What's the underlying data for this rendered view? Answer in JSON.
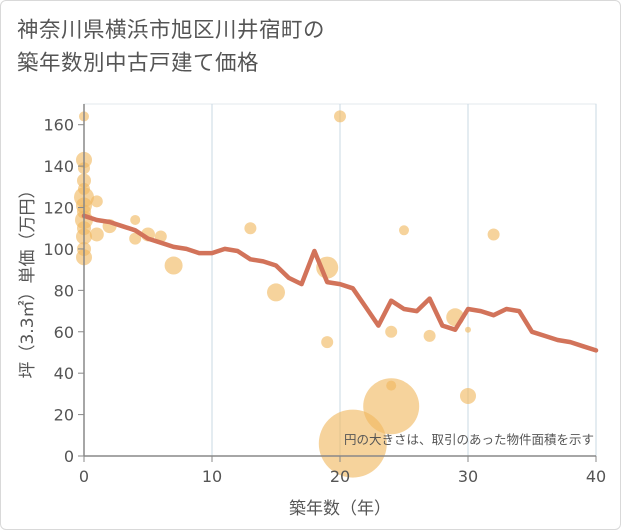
{
  "title_lines": [
    "神奈川県横浜市旭区川井宿町の",
    "築年数別中古戸建て価格"
  ],
  "chart_data": {
    "type": "scatter+line",
    "xlabel": "築年数（年）",
    "ylabel": "坪（3.3㎡）単価（万円）",
    "xlim": [
      0,
      40
    ],
    "ylim": [
      0,
      170
    ],
    "xticks": [
      0,
      10,
      20,
      30,
      40
    ],
    "yticks": [
      0,
      20,
      40,
      60,
      80,
      100,
      120,
      140,
      160
    ],
    "grid": "vertical",
    "note": "円の大きさは、取引のあった物件面積を示す",
    "colors": {
      "bubble": "#f0b860",
      "line": "#d2735a",
      "grid": "#c9d9e3",
      "axis": "#888888"
    },
    "bubbles": [
      {
        "x": 0,
        "y": 164,
        "size": 5
      },
      {
        "x": 0,
        "y": 143,
        "size": 8
      },
      {
        "x": 0,
        "y": 139,
        "size": 6
      },
      {
        "x": 0,
        "y": 133,
        "size": 7
      },
      {
        "x": 0,
        "y": 129,
        "size": 6
      },
      {
        "x": 0,
        "y": 125,
        "size": 10
      },
      {
        "x": 0,
        "y": 121,
        "size": 8
      },
      {
        "x": 0,
        "y": 118,
        "size": 7
      },
      {
        "x": 0,
        "y": 114,
        "size": 9
      },
      {
        "x": 0,
        "y": 110,
        "size": 7
      },
      {
        "x": 0,
        "y": 106,
        "size": 8
      },
      {
        "x": 0,
        "y": 100,
        "size": 7
      },
      {
        "x": 0,
        "y": 96,
        "size": 8
      },
      {
        "x": 1,
        "y": 123,
        "size": 6
      },
      {
        "x": 1,
        "y": 107,
        "size": 7
      },
      {
        "x": 2,
        "y": 111,
        "size": 7
      },
      {
        "x": 4,
        "y": 114,
        "size": 5
      },
      {
        "x": 4,
        "y": 105,
        "size": 6
      },
      {
        "x": 5,
        "y": 107,
        "size": 7
      },
      {
        "x": 6,
        "y": 106,
        "size": 6
      },
      {
        "x": 7,
        "y": 92,
        "size": 9
      },
      {
        "x": 13,
        "y": 110,
        "size": 6
      },
      {
        "x": 15,
        "y": 79,
        "size": 9
      },
      {
        "x": 19,
        "y": 91,
        "size": 11
      },
      {
        "x": 19,
        "y": 55,
        "size": 6
      },
      {
        "x": 20,
        "y": 164,
        "size": 6
      },
      {
        "x": 21,
        "y": 6,
        "size": 34
      },
      {
        "x": 24,
        "y": 24,
        "size": 28
      },
      {
        "x": 24,
        "y": 60,
        "size": 6
      },
      {
        "x": 24,
        "y": 34,
        "size": 5
      },
      {
        "x": 25,
        "y": 109,
        "size": 5
      },
      {
        "x": 27,
        "y": 58,
        "size": 6
      },
      {
        "x": 29,
        "y": 67,
        "size": 9
      },
      {
        "x": 30,
        "y": 61,
        "size": 3
      },
      {
        "x": 30,
        "y": 29,
        "size": 8
      },
      {
        "x": 32,
        "y": 107,
        "size": 6
      }
    ],
    "line": {
      "x": [
        0,
        1,
        2,
        3,
        4,
        5,
        6,
        7,
        8,
        9,
        10,
        11,
        12,
        13,
        14,
        15,
        16,
        17,
        18,
        19,
        20,
        21,
        22,
        23,
        24,
        25,
        26,
        27,
        28,
        29,
        30,
        31,
        32,
        33,
        34,
        35,
        36,
        37,
        38,
        39,
        40
      ],
      "y": [
        116,
        114,
        113,
        111,
        109,
        105,
        103,
        101,
        100,
        98,
        98,
        100,
        99,
        95,
        94,
        92,
        86,
        83,
        99,
        84,
        83,
        81,
        72,
        63,
        75,
        71,
        70,
        76,
        63,
        61,
        71,
        70,
        68,
        71,
        70,
        60,
        58,
        56,
        55,
        53,
        51
      ]
    }
  }
}
